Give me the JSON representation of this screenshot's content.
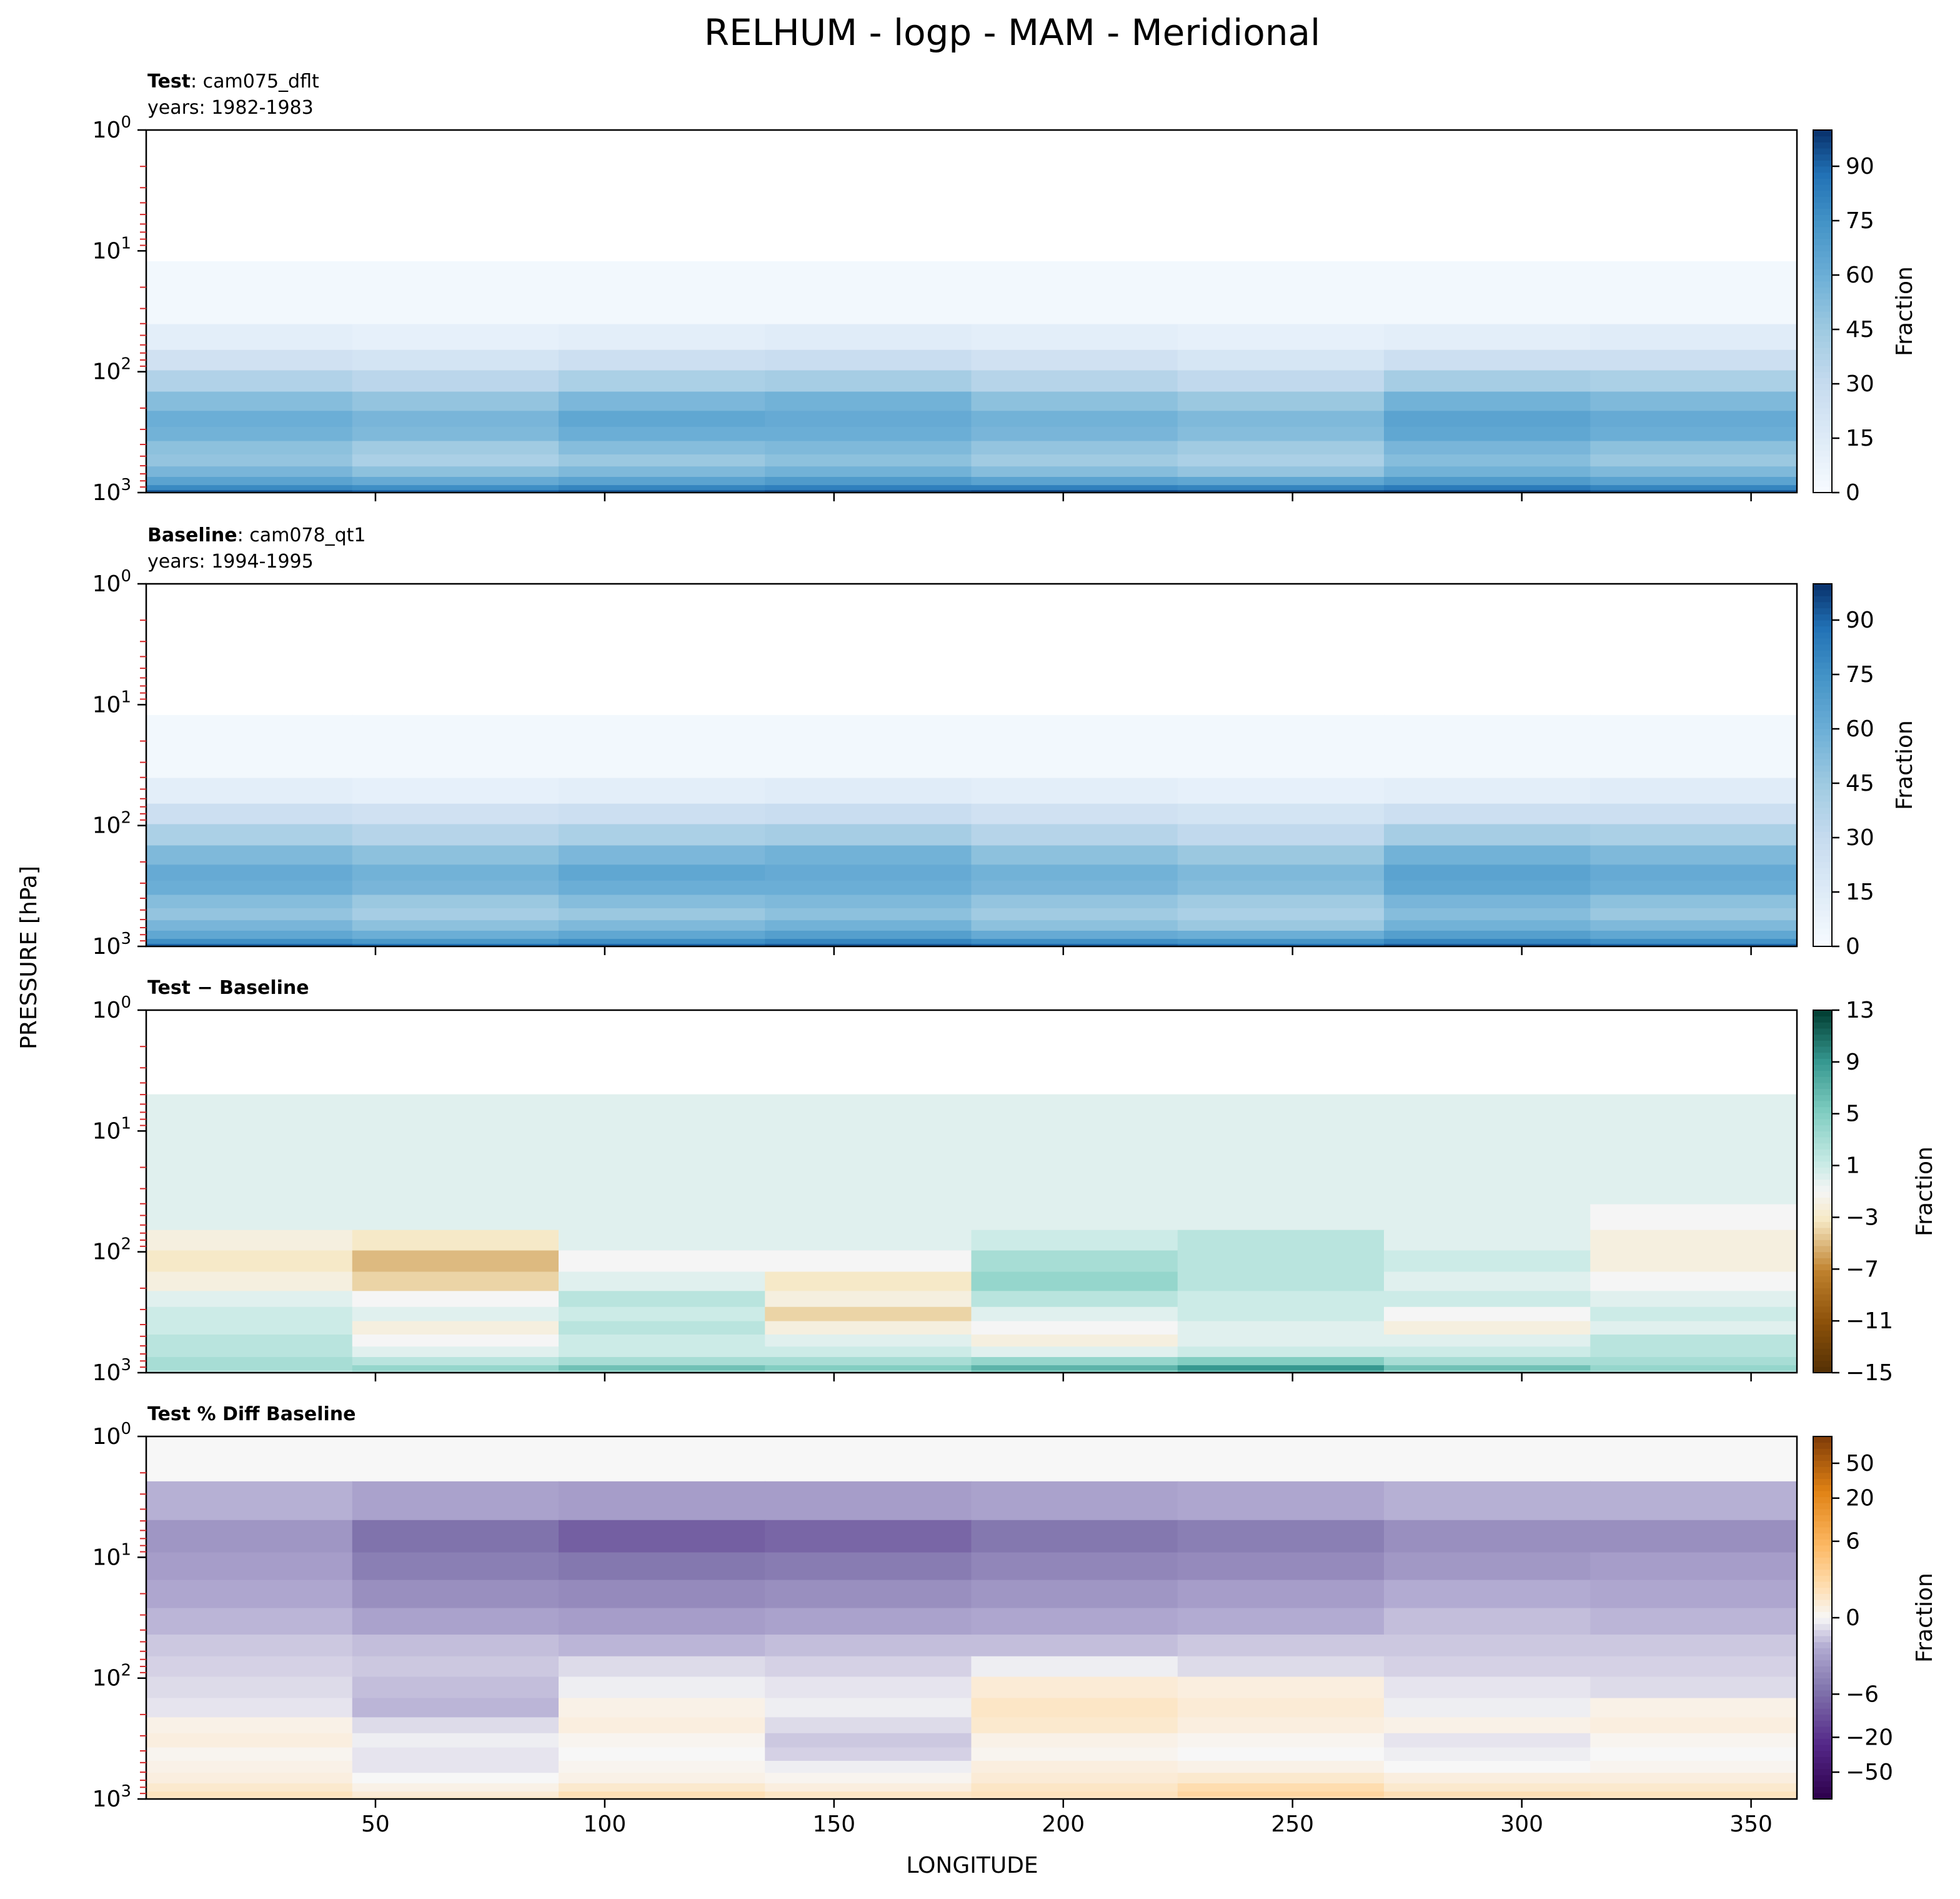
{
  "figure": {
    "title": "RELHUM - logp - MAM - Meridional",
    "ylabel": "PRESSURE [hPa]",
    "xlabel": "LONGITUDE"
  },
  "chart_data": [
    {
      "type": "heatmap",
      "panel": "test",
      "label_bold": "Test",
      "label_rest": ": cam075_dflt",
      "years": "years: 1982-1983",
      "x_ticks": [
        50,
        100,
        150,
        200,
        250,
        300,
        350
      ],
      "xlim": [
        0,
        360
      ],
      "yscale": "log",
      "ylim": [
        1000,
        1
      ],
      "y_tick_labels": [
        "10^0",
        "10^1",
        "10^2",
        "10^3"
      ],
      "colormap": "Blues",
      "colorbar": {
        "label": "Fraction",
        "min": 0,
        "max": 100,
        "ticks": [
          0,
          15,
          30,
          45,
          60,
          75,
          90
        ]
      },
      "field": {
        "pressure_hPa": [
          5,
          30,
          55,
          80,
          120,
          180,
          250,
          330,
          430,
          550,
          680,
          820,
          930,
          990
        ],
        "values": [
          [
            0,
            0,
            0,
            0,
            0,
            0,
            0,
            0
          ],
          [
            3,
            3,
            3,
            3,
            3,
            3,
            3,
            3
          ],
          [
            12,
            10,
            12,
            14,
            12,
            10,
            12,
            14
          ],
          [
            24,
            22,
            26,
            28,
            24,
            20,
            26,
            26
          ],
          [
            38,
            34,
            40,
            42,
            36,
            32,
            42,
            40
          ],
          [
            52,
            48,
            55,
            58,
            50,
            46,
            58,
            54
          ],
          [
            60,
            56,
            64,
            62,
            58,
            54,
            66,
            62
          ],
          [
            58,
            54,
            60,
            60,
            56,
            52,
            64,
            60
          ],
          [
            50,
            44,
            52,
            54,
            48,
            44,
            56,
            50
          ],
          [
            48,
            40,
            46,
            50,
            44,
            40,
            52,
            46
          ],
          [
            56,
            50,
            54,
            58,
            52,
            48,
            58,
            54
          ],
          [
            66,
            62,
            66,
            70,
            66,
            64,
            70,
            66
          ],
          [
            78,
            76,
            80,
            82,
            82,
            80,
            84,
            80
          ],
          [
            92,
            90,
            92,
            94,
            95,
            94,
            95,
            92
          ]
        ]
      }
    },
    {
      "type": "heatmap",
      "panel": "baseline",
      "label_bold": "Baseline",
      "label_rest": ": cam078_qt1",
      "years": "years: 1994-1995",
      "x_ticks": [
        50,
        100,
        150,
        200,
        250,
        300,
        350
      ],
      "xlim": [
        0,
        360
      ],
      "yscale": "log",
      "ylim": [
        1000,
        1
      ],
      "y_tick_labels": [
        "10^0",
        "10^1",
        "10^2",
        "10^3"
      ],
      "colormap": "Blues",
      "colorbar": {
        "label": "Fraction",
        "min": 0,
        "max": 100,
        "ticks": [
          0,
          15,
          30,
          45,
          60,
          75,
          90
        ]
      },
      "field": {
        "pressure_hPa": [
          5,
          30,
          55,
          80,
          120,
          180,
          250,
          330,
          430,
          550,
          680,
          820,
          930,
          990
        ],
        "values": [
          [
            0,
            0,
            0,
            0,
            0,
            0,
            0,
            0
          ],
          [
            3,
            3,
            3,
            3,
            3,
            3,
            3,
            3
          ],
          [
            12,
            10,
            12,
            14,
            12,
            10,
            12,
            14
          ],
          [
            26,
            24,
            26,
            28,
            24,
            22,
            26,
            26
          ],
          [
            40,
            36,
            40,
            42,
            36,
            32,
            42,
            40
          ],
          [
            54,
            50,
            55,
            58,
            50,
            46,
            58,
            54
          ],
          [
            62,
            58,
            64,
            62,
            58,
            54,
            66,
            62
          ],
          [
            60,
            56,
            60,
            60,
            56,
            52,
            64,
            60
          ],
          [
            52,
            46,
            52,
            54,
            48,
            44,
            56,
            50
          ],
          [
            48,
            42,
            46,
            50,
            44,
            40,
            52,
            46
          ],
          [
            56,
            50,
            54,
            58,
            50,
            46,
            58,
            54
          ],
          [
            64,
            60,
            64,
            68,
            62,
            60,
            68,
            64
          ],
          [
            76,
            72,
            76,
            80,
            76,
            74,
            80,
            76
          ],
          [
            90,
            88,
            90,
            92,
            90,
            88,
            92,
            90
          ]
        ]
      }
    },
    {
      "type": "heatmap",
      "panel": "difference",
      "label_bold": "Test − Baseline",
      "x_ticks": [
        50,
        100,
        150,
        200,
        250,
        300,
        350
      ],
      "xlim": [
        0,
        360
      ],
      "yscale": "log",
      "ylim": [
        1000,
        1
      ],
      "y_tick_labels": [
        "10^0",
        "10^1",
        "10^2",
        "10^3"
      ],
      "colormap": "BrBG",
      "colorbar": {
        "label": "Fraction",
        "min": -15,
        "max": 13,
        "ticks": [
          -15,
          -11,
          -7,
          -3,
          1,
          5,
          9,
          13
        ]
      },
      "field": {
        "pressure_hPa": [
          5,
          30,
          55,
          80,
          120,
          180,
          250,
          330,
          430,
          550,
          680,
          820,
          930,
          990
        ],
        "values": [
          [
            0,
            0,
            0,
            0,
            0,
            0,
            0,
            0
          ],
          [
            0,
            0,
            0,
            0,
            0,
            0,
            0,
            0
          ],
          [
            0,
            0,
            0,
            0,
            0,
            0,
            0,
            -1
          ],
          [
            -2,
            -3,
            0,
            0,
            1,
            2,
            0,
            -2
          ],
          [
            -3,
            -5,
            -1,
            -1,
            3,
            2,
            1,
            -2
          ],
          [
            -2,
            -4,
            0,
            -3,
            4,
            2,
            0,
            -1
          ],
          [
            0,
            -1,
            2,
            -2,
            2,
            1,
            1,
            0
          ],
          [
            1,
            0,
            1,
            -4,
            0,
            1,
            -1,
            1
          ],
          [
            1,
            -2,
            2,
            -2,
            -1,
            0,
            -2,
            0
          ],
          [
            2,
            -1,
            1,
            0,
            -2,
            0,
            0,
            2
          ],
          [
            2,
            0,
            1,
            1,
            0,
            1,
            1,
            2
          ],
          [
            3,
            2,
            3,
            3,
            4,
            5,
            3,
            3
          ],
          [
            3,
            4,
            6,
            5,
            7,
            9,
            6,
            4
          ],
          [
            2,
            3,
            4,
            3,
            5,
            7,
            4,
            3
          ]
        ]
      }
    },
    {
      "type": "heatmap",
      "panel": "percent-difference",
      "label_bold": "Test % Diff Baseline",
      "x_ticks": [
        50,
        100,
        150,
        200,
        250,
        300,
        350
      ],
      "xlim": [
        0,
        360
      ],
      "yscale": "log",
      "ylim": [
        1000,
        1
      ],
      "y_tick_labels": [
        "10^0",
        "10^1",
        "10^2",
        "10^3"
      ],
      "colormap": "PuOr",
      "colorbar": {
        "label": "Fraction",
        "min": -100,
        "max": 100,
        "ticks": [
          -50,
          -20,
          -6,
          0,
          6,
          20,
          50
        ]
      },
      "field": {
        "pressure_hPa": [
          1.6,
          3.5,
          7,
          12,
          20,
          35,
          55,
          80,
          120,
          180,
          250,
          330,
          430,
          550,
          680,
          820,
          930,
          990
        ],
        "values": [
          [
            0,
            0,
            0,
            0,
            0,
            0,
            0,
            0
          ],
          [
            -15,
            -20,
            -22,
            -22,
            -20,
            -18,
            -15,
            -15
          ],
          [
            -25,
            -40,
            -48,
            -45,
            -38,
            -35,
            -28,
            -28
          ],
          [
            -22,
            -35,
            -38,
            -36,
            -32,
            -30,
            -24,
            -22
          ],
          [
            -18,
            -28,
            -30,
            -28,
            -25,
            -22,
            -16,
            -18
          ],
          [
            -14,
            -20,
            -22,
            -20,
            -18,
            -16,
            -12,
            -14
          ],
          [
            -10,
            -12,
            -14,
            -12,
            -12,
            -10,
            -10,
            -10
          ],
          [
            -8,
            -10,
            -6,
            -8,
            -2,
            -6,
            -8,
            -8
          ],
          [
            -6,
            -12,
            -2,
            -4,
            8,
            6,
            -4,
            -6
          ],
          [
            -4,
            -14,
            4,
            -2,
            12,
            8,
            -2,
            4
          ],
          [
            4,
            -6,
            6,
            -6,
            10,
            6,
            4,
            6
          ],
          [
            6,
            -2,
            2,
            -10,
            4,
            2,
            -4,
            2
          ],
          [
            2,
            -4,
            0,
            -8,
            2,
            0,
            -2,
            0
          ],
          [
            4,
            -4,
            2,
            -2,
            6,
            4,
            0,
            2
          ],
          [
            6,
            0,
            4,
            2,
            8,
            10,
            6,
            6
          ],
          [
            10,
            4,
            10,
            6,
            12,
            18,
            10,
            10
          ],
          [
            14,
            8,
            16,
            12,
            14,
            22,
            16,
            14
          ],
          [
            12,
            10,
            14,
            10,
            12,
            16,
            12,
            12
          ]
        ]
      }
    }
  ]
}
